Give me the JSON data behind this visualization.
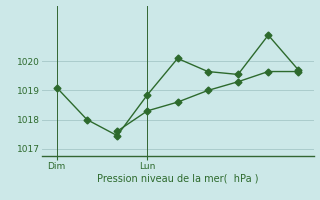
{
  "line1_x": [
    0,
    1,
    2,
    3,
    4,
    5,
    6,
    7,
    8
  ],
  "line1_y": [
    1019.1,
    1018.0,
    1017.45,
    1018.85,
    1020.1,
    1019.65,
    1019.55,
    1020.9,
    1019.7
  ],
  "line2_x": [
    2,
    3,
    4,
    5,
    6,
    7,
    8
  ],
  "line2_y": [
    1017.6,
    1018.3,
    1018.6,
    1019.0,
    1019.3,
    1019.65,
    1019.65
  ],
  "line_color": "#2d6a2d",
  "bg_color": "#cce8e8",
  "grid_color": "#aacccc",
  "axis_color": "#336633",
  "ylim": [
    1016.75,
    1021.9
  ],
  "yticks": [
    1017,
    1018,
    1019,
    1020
  ],
  "dim_x": 0,
  "lun_x": 3,
  "xlabel": "Pression niveau de la mer(  hPa )",
  "xlabel_color": "#2d6a2d",
  "tick_color": "#2d6a2d",
  "marker": "D",
  "marker_size": 3.5,
  "xlim": [
    -0.5,
    8.5
  ]
}
